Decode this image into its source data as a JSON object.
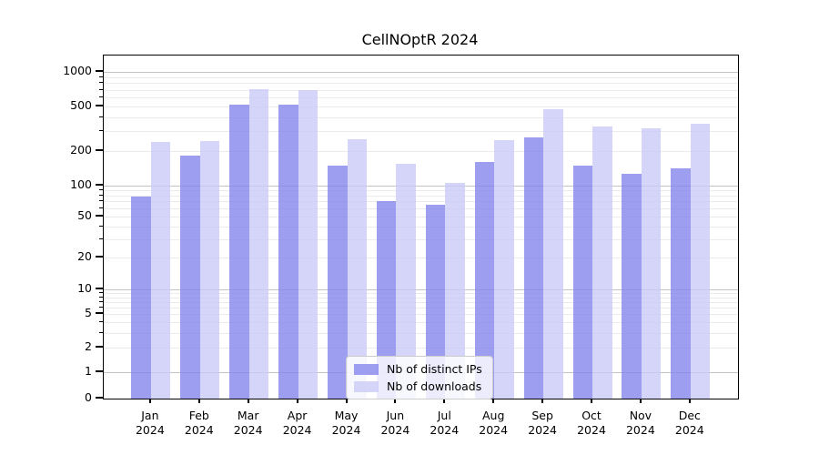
{
  "title": "CellNOptR 2024",
  "chart_data": {
    "type": "bar",
    "title": "CellNOptR 2024",
    "categories": [
      "Jan",
      "Feb",
      "Mar",
      "Apr",
      "May",
      "Jun",
      "Jul",
      "Aug",
      "Sep",
      "Oct",
      "Nov",
      "Dec"
    ],
    "category_year": "2024",
    "series": [
      {
        "name": "Nb of distinct IPs",
        "color": "#8686ee",
        "values": [
          78,
          185,
          513,
          513,
          149,
          71,
          65,
          160,
          265,
          149,
          127,
          142
        ]
      },
      {
        "name": "Nb of downloads",
        "color": "#cacaf8",
        "values": [
          242,
          246,
          710,
          690,
          255,
          156,
          105,
          250,
          470,
          331,
          322,
          352
        ]
      }
    ],
    "bar_alpha": 0.8,
    "yticks": [
      0,
      1,
      2,
      5,
      10,
      20,
      50,
      100,
      200,
      500,
      1000
    ],
    "y_scale": "log-with-zero-baseline",
    "ylim": [
      0,
      1300
    ],
    "xlabel": "",
    "ylabel": "",
    "grid": true,
    "legend_position": "lower center"
  }
}
